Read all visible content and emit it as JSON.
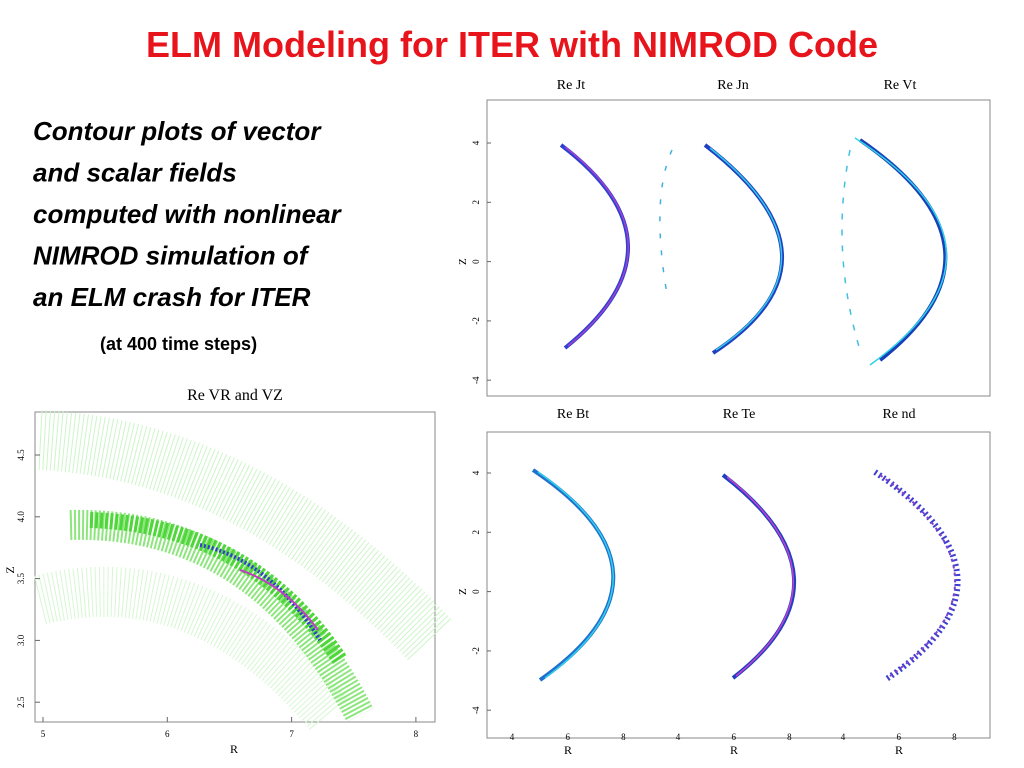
{
  "title": "ELM Modeling for ITER with NIMROD Code",
  "description": [
    "Contour plots of vector",
    "and scalar fields",
    "computed with nonlinear",
    "NIMROD simulation of",
    "an ELM crash for ITER"
  ],
  "note": "(at 400 time steps)",
  "vector_plot": {
    "title": "Re VR and VZ",
    "x_label": "R",
    "y_label": "Z",
    "x_ticks": [
      "5",
      "6",
      "7",
      "8"
    ],
    "y_ticks": [
      "4.5",
      "4.0",
      "3.5",
      "3.0",
      "2.5"
    ]
  },
  "top_panel": {
    "titles": [
      "Re Jt",
      "Re Jn",
      "Re Vt"
    ],
    "y_label": "Z",
    "y_ticks": [
      "4",
      "2",
      "0",
      "-2",
      "-4"
    ]
  },
  "bottom_panel": {
    "titles": [
      "Re Bt",
      "Re Te",
      "Re nd"
    ],
    "y_label": "Z",
    "y_ticks": [
      "4",
      "2",
      "0",
      "-2",
      "-4"
    ],
    "x_label": "R",
    "x_ticks": [
      "4",
      "6",
      "8"
    ]
  }
}
